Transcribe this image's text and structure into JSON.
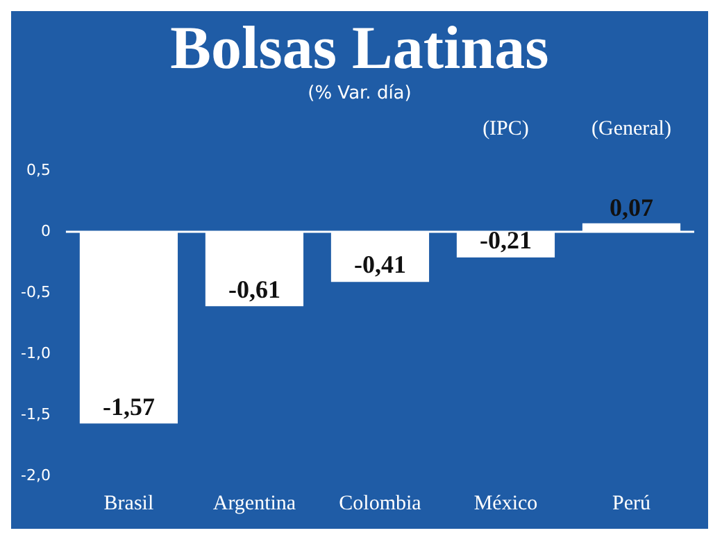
{
  "chart_data": {
    "type": "bar",
    "title": "Bolsas Latinas",
    "subtitle": "(% Var. día)",
    "categories": [
      "Brasil",
      "Argentina",
      "Colombia",
      "México",
      "Perú"
    ],
    "values": [
      -1.57,
      -0.61,
      -0.41,
      -0.21,
      0.07
    ],
    "color": "#ffffff",
    "value_labels": [
      "-1,57",
      "-0,61",
      "-0,41",
      "-0,21",
      "0,07"
    ],
    "ylim": [
      -2.0,
      0.5
    ],
    "yticks": [
      {
        "value": 0.5,
        "label": "0,5"
      },
      0,
      {
        "value": -0.5,
        "label": "-0,5"
      },
      {
        "value": -1.0,
        "label": "-1,0"
      },
      {
        "value": -1.5,
        "label": "-1,5"
      },
      {
        "value": -2.0,
        "label": "-2,0"
      }
    ],
    "ref_lines": [
      {
        "axis": "y",
        "value": 0,
        "color": "#ffffff"
      }
    ],
    "annotations": [
      "(IPC)",
      "(General)"
    ],
    "grid": false,
    "legend": false
  }
}
